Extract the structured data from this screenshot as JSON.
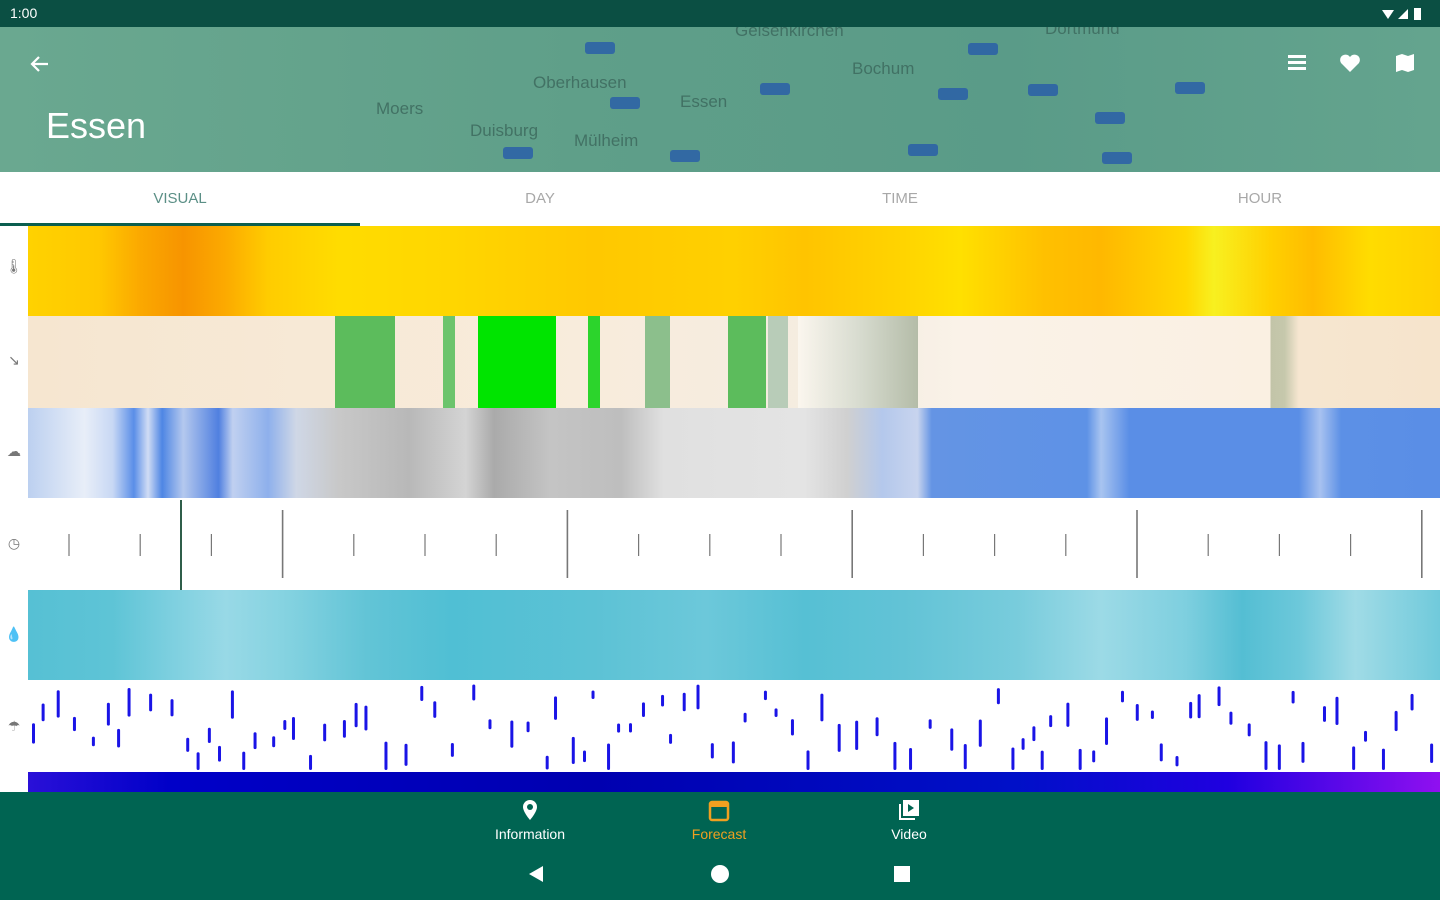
{
  "status_bar": {
    "time": "1:00"
  },
  "header": {
    "title": "Essen",
    "map_labels": [
      "Gelsenkirchen",
      "Dortmund",
      "Oberhausen",
      "Bochum",
      "Moers",
      "Essen",
      "Duisburg",
      "Mülheim"
    ]
  },
  "tabs": [
    "VISUAL",
    "DAY",
    "TIME",
    "HOUR"
  ],
  "bottom_nav": [
    "Information",
    "Forecast",
    "Video"
  ]
}
